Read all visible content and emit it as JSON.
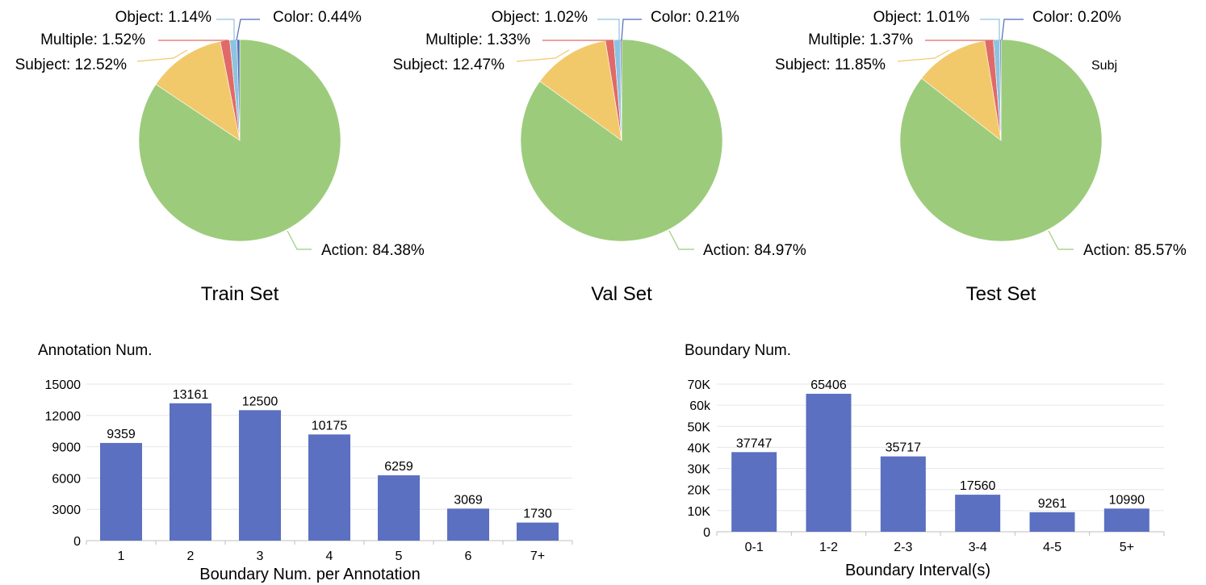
{
  "chart_data": [
    {
      "type": "pie",
      "title": "Train Set",
      "stray_label": "",
      "slices": [
        {
          "name": "Action",
          "value": 84.38,
          "label": "Action: 84.38%"
        },
        {
          "name": "Subject",
          "value": 12.52,
          "label": "Subject: 12.52%"
        },
        {
          "name": "Multiple",
          "value": 1.52,
          "label": "Multiple: 1.52%"
        },
        {
          "name": "Object",
          "value": 1.14,
          "label": "Object: 1.14%"
        },
        {
          "name": "Color",
          "value": 0.44,
          "label": "Color: 0.44%"
        }
      ]
    },
    {
      "type": "pie",
      "title": "Val Set",
      "stray_label": "",
      "slices": [
        {
          "name": "Action",
          "value": 84.97,
          "label": "Action: 84.97%"
        },
        {
          "name": "Subject",
          "value": 12.47,
          "label": "Subject: 12.47%"
        },
        {
          "name": "Multiple",
          "value": 1.33,
          "label": "Multiple: 1.33%"
        },
        {
          "name": "Object",
          "value": 1.02,
          "label": "Object: 1.02%"
        },
        {
          "name": "Color",
          "value": 0.21,
          "label": "Color: 0.21%"
        }
      ]
    },
    {
      "type": "pie",
      "title": "Test Set",
      "stray_label": "Subj",
      "slices": [
        {
          "name": "Action",
          "value": 85.57,
          "label": "Action: 85.57%"
        },
        {
          "name": "Subject",
          "value": 11.85,
          "label": "Subject: 11.85%"
        },
        {
          "name": "Multiple",
          "value": 1.37,
          "label": "Multiple: 1.37%"
        },
        {
          "name": "Object",
          "value": 1.01,
          "label": "Object: 1.01%"
        },
        {
          "name": "Color",
          "value": 0.2,
          "label": "Color: 0.20%"
        }
      ]
    },
    {
      "type": "bar",
      "title": "Annotation Num.",
      "xlabel": "Boundary Num. per Annotation",
      "ylabel": "Annotation Num.",
      "categories": [
        "1",
        "2",
        "3",
        "4",
        "5",
        "6",
        "7+"
      ],
      "values": [
        9359,
        13161,
        12500,
        10175,
        6259,
        3069,
        1730
      ],
      "value_labels": [
        "9359",
        "13161",
        "12500",
        "10175",
        "6259",
        "3069",
        "1730"
      ],
      "ylim": [
        0,
        15000
      ],
      "yticks": [
        0,
        3000,
        6000,
        9000,
        12000,
        15000
      ],
      "ytick_labels": [
        "0",
        "3000",
        "6000",
        "9000",
        "12000",
        "15000"
      ]
    },
    {
      "type": "bar",
      "title": "Boundary Num.",
      "xlabel": "Boundary Interval(s)",
      "ylabel": "Boundary Num.",
      "categories": [
        "0-1",
        "1-2",
        "2-3",
        "3-4",
        "4-5",
        "5+"
      ],
      "values": [
        37747,
        65406,
        35717,
        17560,
        9261,
        10990
      ],
      "value_labels": [
        "37747",
        "65406",
        "35717",
        "17560",
        "9261",
        "10990"
      ],
      "ylim": [
        0,
        70000
      ],
      "yticks": [
        0,
        10000,
        20000,
        30000,
        40000,
        50000,
        60000,
        70000
      ],
      "ytick_labels": [
        "0",
        "10K",
        "20K",
        "30K",
        "40K",
        "50K",
        "60k",
        "70K"
      ]
    }
  ],
  "colors": {
    "Action": "#9dcb7c",
    "Subject": "#f2c96a",
    "Multiple": "#e06a68",
    "Object": "#8fc2e0",
    "Color": "#4e6bb8",
    "bar": "#5b70c0",
    "grid": "#e6e6e6",
    "axis": "#bfbfbf"
  }
}
